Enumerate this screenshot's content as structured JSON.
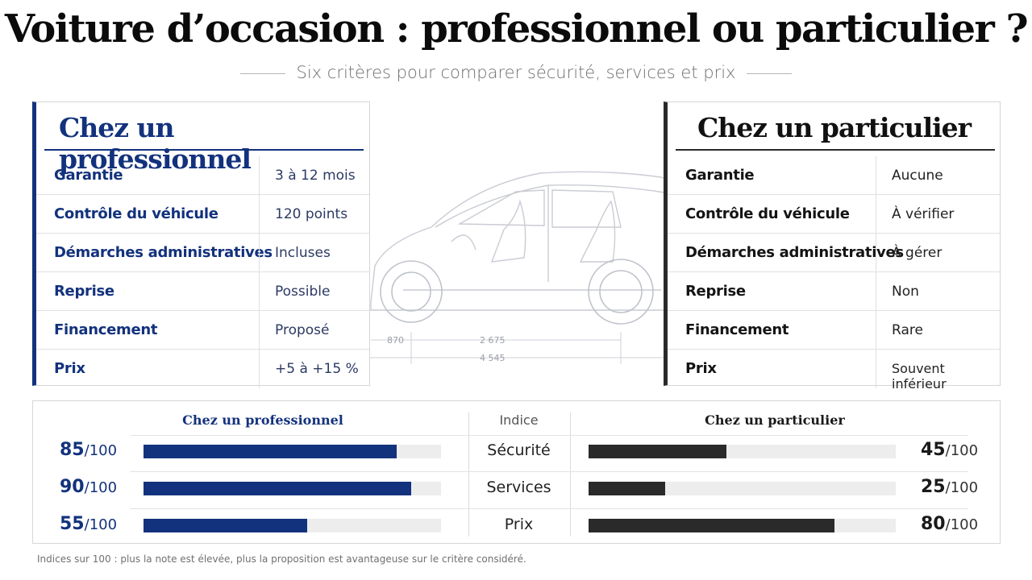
{
  "header": {
    "title": "Voiture d’occasion : professionnel ou particulier ?",
    "subtitle": "Six critères pour comparer sécurité, services et prix"
  },
  "car_dimensions": {
    "front": "870",
    "wheelbase": "2 675",
    "length": "4 545"
  },
  "professional": {
    "title": "Chez un professionnel",
    "rows": [
      {
        "label": "Garantie",
        "value": "3 à 12 mois"
      },
      {
        "label": "Contrôle du véhicule",
        "value": "120 points"
      },
      {
        "label": "Démarches administratives",
        "value": "Incluses"
      },
      {
        "label": "Reprise",
        "value": "Possible"
      },
      {
        "label": "Financement",
        "value": "Proposé"
      },
      {
        "label": "Prix",
        "value": "+5 à +15 %"
      }
    ]
  },
  "private": {
    "title": "Chez un particulier",
    "rows": [
      {
        "label": "Garantie",
        "value": "Aucune"
      },
      {
        "label": "Contrôle du véhicule",
        "value": "À vérifier"
      },
      {
        "label": "Démarches administratives",
        "value": "À gérer"
      },
      {
        "label": "Reprise",
        "value": "Non"
      },
      {
        "label": "Financement",
        "value": "Rare"
      },
      {
        "label": "Prix",
        "value": "Souvent inférieur"
      }
    ]
  },
  "index": {
    "pro_header": "Chez un professionnel",
    "mid_header": "Indice",
    "part_header": "Chez un particulier",
    "out_of": "/100",
    "rows": [
      {
        "criterion": "Sécurité",
        "pro": 85,
        "part": 45
      },
      {
        "criterion": "Services",
        "pro": 90,
        "part": 25
      },
      {
        "criterion": "Prix",
        "pro": 55,
        "part": 80
      }
    ]
  },
  "footnote": "Indices sur 100 : plus la note est élevée, plus la proposition est avantageuse sur le critère considéré.",
  "colors": {
    "pro": "#13327d",
    "part": "#2a2a2a",
    "track": "#ededed"
  }
}
